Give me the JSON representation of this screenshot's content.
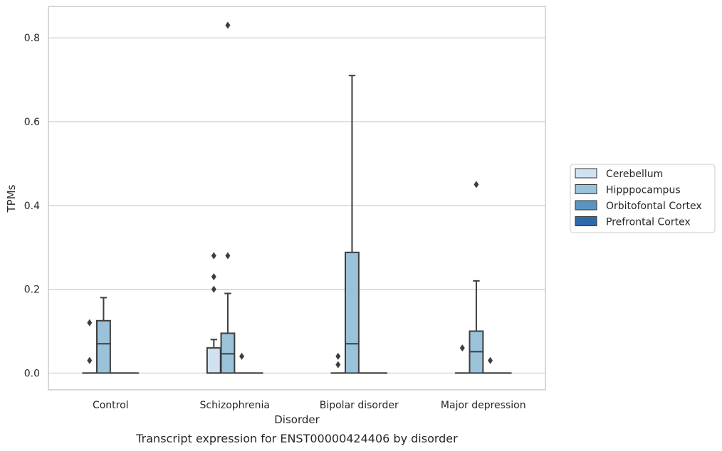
{
  "caption": "Transcript expression for ENST00000424406 by disorder",
  "chart_data": {
    "type": "box",
    "xlabel": "Disorder",
    "ylabel": "TPMs",
    "ylim": [
      -0.04,
      0.875
    ],
    "yticks": [
      0.0,
      0.2,
      0.4,
      0.6,
      0.8
    ],
    "ytick_labels": [
      "0.0",
      "0.2",
      "0.4",
      "0.6",
      "0.8"
    ],
    "grid": "horizontal",
    "legend_position": "right",
    "categories": [
      "Control",
      "Schizophrenia",
      "Bipolar disorder",
      "Major depression"
    ],
    "series": [
      {
        "name": "Cerebellum",
        "color": "#d2e1ef",
        "boxes": [
          {
            "q1": 0,
            "median": 0,
            "q3": 0,
            "whisker_low": 0,
            "whisker_high": 0,
            "fliers": [
              0.12,
              0.03
            ]
          },
          {
            "q1": 0,
            "median": 0,
            "q3": 0.06,
            "whisker_low": 0,
            "whisker_high": 0.08,
            "fliers": [
              0.28,
              0.23,
              0.2
            ]
          },
          {
            "q1": 0,
            "median": 0,
            "q3": 0,
            "whisker_low": 0,
            "whisker_high": 0,
            "fliers": [
              0.04,
              0.02
            ]
          },
          {
            "q1": 0,
            "median": 0,
            "q3": 0,
            "whisker_low": 0,
            "whisker_high": 0,
            "fliers": [
              0.06
            ]
          }
        ]
      },
      {
        "name": "Hipppocampus",
        "color": "#9ac3da",
        "boxes": [
          {
            "q1": 0,
            "median": 0.07,
            "q3": 0.125,
            "whisker_low": 0,
            "whisker_high": 0.18,
            "fliers": []
          },
          {
            "q1": 0,
            "median": 0.046,
            "q3": 0.095,
            "whisker_low": 0,
            "whisker_high": 0.19,
            "fliers": [
              0.83,
              0.28
            ]
          },
          {
            "q1": 0,
            "median": 0.07,
            "q3": 0.288,
            "whisker_low": 0,
            "whisker_high": 0.71,
            "fliers": []
          },
          {
            "q1": 0,
            "median": 0.051,
            "q3": 0.1,
            "whisker_low": 0,
            "whisker_high": 0.22,
            "fliers": [
              0.45
            ]
          }
        ]
      },
      {
        "name": "Orbitofontal Cortex",
        "color": "#5a95c2",
        "boxes": [
          {
            "q1": 0,
            "median": 0,
            "q3": 0,
            "whisker_low": 0,
            "whisker_high": 0,
            "fliers": []
          },
          {
            "q1": 0,
            "median": 0,
            "q3": 0,
            "whisker_low": 0,
            "whisker_high": 0,
            "fliers": [
              0.04
            ]
          },
          {
            "q1": 0,
            "median": 0,
            "q3": 0,
            "whisker_low": 0,
            "whisker_high": 0,
            "fliers": []
          },
          {
            "q1": 0,
            "median": 0,
            "q3": 0,
            "whisker_low": 0,
            "whisker_high": 0,
            "fliers": [
              0.03
            ]
          }
        ]
      },
      {
        "name": "Prefrontal Cortex",
        "color": "#2c6ba7",
        "boxes": [
          {
            "q1": 0,
            "median": 0,
            "q3": 0,
            "whisker_low": 0,
            "whisker_high": 0,
            "fliers": []
          },
          {
            "q1": 0,
            "median": 0,
            "q3": 0,
            "whisker_low": 0,
            "whisker_high": 0,
            "fliers": []
          },
          {
            "q1": 0,
            "median": 0,
            "q3": 0,
            "whisker_low": 0,
            "whisker_high": 0,
            "fliers": []
          },
          {
            "q1": 0,
            "median": 0,
            "q3": 0,
            "whisker_low": 0,
            "whisker_high": 0,
            "fliers": []
          }
        ]
      }
    ]
  }
}
